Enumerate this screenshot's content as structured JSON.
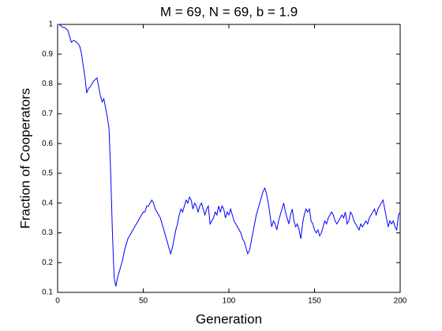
{
  "chart_data": {
    "type": "line",
    "title": "M = 69, N = 69, b = 1.9",
    "xlabel": "Generation",
    "ylabel": "Fraction of Cooperators",
    "xlim": [
      0,
      200
    ],
    "xticks": [
      0,
      50,
      100,
      150,
      200
    ],
    "ylim": [
      0.1,
      1
    ],
    "yticks": [
      0.1,
      0.2,
      0.3,
      0.4,
      0.5,
      0.6,
      0.7,
      0.8,
      0.9,
      1
    ],
    "series": [
      {
        "color": "#0000ff",
        "x": [
          0,
          1,
          2,
          3,
          4,
          5,
          6,
          7,
          8,
          9,
          10,
          11,
          12,
          13,
          14,
          15,
          16,
          17,
          18,
          19,
          20,
          21,
          22,
          23,
          24,
          25,
          26,
          27,
          28,
          29,
          30,
          31,
          32,
          33,
          34,
          35,
          36,
          37,
          38,
          39,
          40,
          41,
          42,
          43,
          44,
          45,
          46,
          47,
          48,
          49,
          50,
          51,
          52,
          53,
          54,
          55,
          56,
          57,
          58,
          59,
          60,
          61,
          62,
          63,
          64,
          65,
          66,
          67,
          68,
          69,
          70,
          71,
          72,
          73,
          74,
          75,
          76,
          77,
          78,
          79,
          80,
          81,
          82,
          83,
          84,
          85,
          86,
          87,
          88,
          89,
          90,
          91,
          92,
          93,
          94,
          95,
          96,
          97,
          98,
          99,
          100,
          101,
          102,
          103,
          104,
          105,
          106,
          107,
          108,
          109,
          110,
          111,
          112,
          113,
          114,
          115,
          116,
          117,
          118,
          119,
          120,
          121,
          122,
          123,
          124,
          125,
          126,
          127,
          128,
          129,
          130,
          131,
          132,
          133,
          134,
          135,
          136,
          137,
          138,
          139,
          140,
          141,
          142,
          143,
          144,
          145,
          146,
          147,
          148,
          149,
          150,
          151,
          152,
          153,
          154,
          155,
          156,
          157,
          158,
          159,
          160,
          161,
          162,
          163,
          164,
          165,
          166,
          167,
          168,
          169,
          170,
          171,
          172,
          173,
          174,
          175,
          176,
          177,
          178,
          179,
          180,
          181,
          182,
          183,
          184,
          185,
          186,
          187,
          188,
          189,
          190,
          191,
          192,
          193,
          194,
          195,
          196,
          197,
          198,
          199,
          200
        ],
        "values": [
          1.0,
          1.0,
          0.995,
          0.99,
          0.99,
          0.985,
          0.98,
          0.96,
          0.94,
          0.945,
          0.945,
          0.94,
          0.935,
          0.925,
          0.9,
          0.86,
          0.82,
          0.77,
          0.785,
          0.79,
          0.8,
          0.81,
          0.815,
          0.82,
          0.79,
          0.76,
          0.74,
          0.75,
          0.72,
          0.69,
          0.65,
          0.5,
          0.3,
          0.15,
          0.12,
          0.15,
          0.17,
          0.19,
          0.21,
          0.24,
          0.26,
          0.28,
          0.29,
          0.3,
          0.31,
          0.32,
          0.33,
          0.34,
          0.35,
          0.36,
          0.37,
          0.37,
          0.39,
          0.39,
          0.4,
          0.41,
          0.4,
          0.38,
          0.37,
          0.36,
          0.35,
          0.33,
          0.31,
          0.29,
          0.27,
          0.25,
          0.23,
          0.25,
          0.28,
          0.31,
          0.33,
          0.36,
          0.38,
          0.37,
          0.39,
          0.41,
          0.4,
          0.42,
          0.41,
          0.38,
          0.4,
          0.39,
          0.37,
          0.39,
          0.4,
          0.38,
          0.36,
          0.38,
          0.39,
          0.33,
          0.34,
          0.35,
          0.37,
          0.36,
          0.39,
          0.37,
          0.39,
          0.38,
          0.35,
          0.37,
          0.36,
          0.38,
          0.36,
          0.34,
          0.33,
          0.32,
          0.31,
          0.3,
          0.28,
          0.27,
          0.25,
          0.23,
          0.24,
          0.27,
          0.3,
          0.33,
          0.36,
          0.38,
          0.4,
          0.42,
          0.44,
          0.45,
          0.43,
          0.4,
          0.36,
          0.32,
          0.34,
          0.33,
          0.31,
          0.34,
          0.36,
          0.38,
          0.4,
          0.37,
          0.35,
          0.33,
          0.36,
          0.38,
          0.34,
          0.32,
          0.33,
          0.31,
          0.28,
          0.33,
          0.36,
          0.38,
          0.37,
          0.38,
          0.34,
          0.33,
          0.31,
          0.3,
          0.31,
          0.29,
          0.3,
          0.32,
          0.34,
          0.33,
          0.35,
          0.36,
          0.37,
          0.36,
          0.34,
          0.33,
          0.34,
          0.35,
          0.36,
          0.35,
          0.37,
          0.33,
          0.34,
          0.37,
          0.36,
          0.34,
          0.33,
          0.32,
          0.31,
          0.33,
          0.32,
          0.33,
          0.34,
          0.33,
          0.35,
          0.36,
          0.37,
          0.38,
          0.36,
          0.38,
          0.39,
          0.4,
          0.41,
          0.38,
          0.35,
          0.32,
          0.34,
          0.33,
          0.34,
          0.32,
          0.31,
          0.36,
          0.37
        ]
      }
    ]
  }
}
